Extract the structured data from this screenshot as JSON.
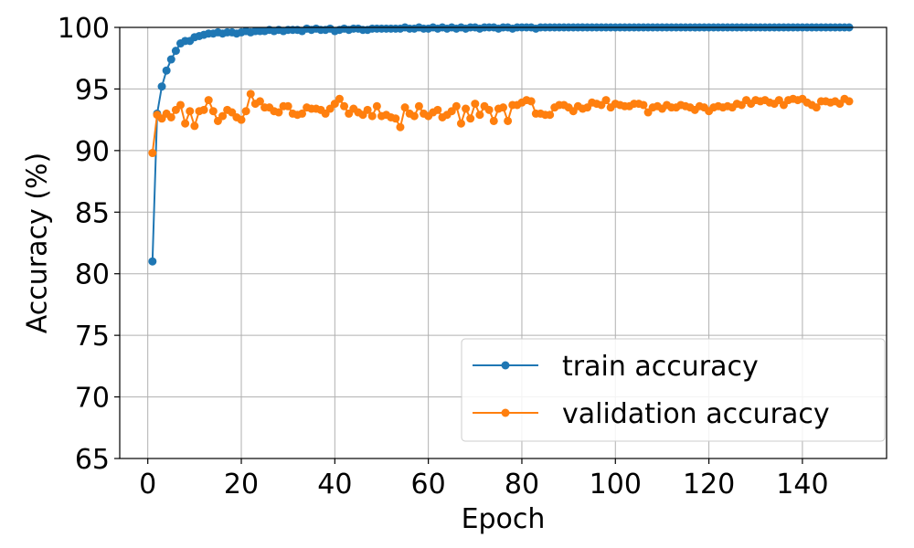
{
  "chart_data": {
    "type": "line",
    "xlabel": "Epoch",
    "ylabel": "Accuracy (%)",
    "xlim": [
      -6,
      158
    ],
    "ylim": [
      65,
      100
    ],
    "xticks": [
      0,
      20,
      40,
      60,
      80,
      100,
      120,
      140
    ],
    "yticks": [
      65,
      70,
      75,
      80,
      85,
      90,
      95,
      100
    ],
    "grid": true,
    "legend_position": "lower-right",
    "x": [
      1,
      2,
      3,
      4,
      5,
      6,
      7,
      8,
      9,
      10,
      11,
      12,
      13,
      14,
      15,
      16,
      17,
      18,
      19,
      20,
      21,
      22,
      23,
      24,
      25,
      26,
      27,
      28,
      29,
      30,
      31,
      32,
      33,
      34,
      35,
      36,
      37,
      38,
      39,
      40,
      41,
      42,
      43,
      44,
      45,
      46,
      47,
      48,
      49,
      50,
      51,
      52,
      53,
      54,
      55,
      56,
      57,
      58,
      59,
      60,
      61,
      62,
      63,
      64,
      65,
      66,
      67,
      68,
      69,
      70,
      71,
      72,
      73,
      74,
      75,
      76,
      77,
      78,
      79,
      80,
      81,
      82,
      83,
      84,
      85,
      86,
      87,
      88,
      89,
      90,
      91,
      92,
      93,
      94,
      95,
      96,
      97,
      98,
      99,
      100,
      101,
      102,
      103,
      104,
      105,
      106,
      107,
      108,
      109,
      110,
      111,
      112,
      113,
      114,
      115,
      116,
      117,
      118,
      119,
      120,
      121,
      122,
      123,
      124,
      125,
      126,
      127,
      128,
      129,
      130,
      131,
      132,
      133,
      134,
      135,
      136,
      137,
      138,
      139,
      140,
      141,
      142,
      143,
      144,
      145,
      146,
      147,
      148,
      149,
      150
    ],
    "series": [
      {
        "name": "train accuracy",
        "color": "#1f77b4",
        "values": [
          81.0,
          93.0,
          95.2,
          96.5,
          97.4,
          98.1,
          98.7,
          98.9,
          98.9,
          99.2,
          99.3,
          99.4,
          99.5,
          99.5,
          99.6,
          99.5,
          99.6,
          99.6,
          99.5,
          99.6,
          99.7,
          99.6,
          99.7,
          99.7,
          99.7,
          99.8,
          99.7,
          99.8,
          99.7,
          99.8,
          99.8,
          99.8,
          99.7,
          99.9,
          99.8,
          99.9,
          99.8,
          99.8,
          99.9,
          99.7,
          99.8,
          99.9,
          99.8,
          99.9,
          99.9,
          99.8,
          99.8,
          99.9,
          99.9,
          99.9,
          99.9,
          99.9,
          99.9,
          99.9,
          100.0,
          99.9,
          99.9,
          100.0,
          99.9,
          99.9,
          100.0,
          99.9,
          100.0,
          99.9,
          100.0,
          99.9,
          100.0,
          99.9,
          100.0,
          100.0,
          99.9,
          100.0,
          100.0,
          100.0,
          99.9,
          100.0,
          100.0,
          99.9,
          100.0,
          100.0,
          100.0,
          100.0,
          99.9,
          100.0,
          100.0,
          100.0,
          100.0,
          100.0,
          100.0,
          100.0,
          100.0,
          100.0,
          100.0,
          100.0,
          100.0,
          100.0,
          100.0,
          100.0,
          100.0,
          100.0,
          100.0,
          100.0,
          100.0,
          100.0,
          100.0,
          100.0,
          100.0,
          100.0,
          100.0,
          100.0,
          100.0,
          100.0,
          100.0,
          100.0,
          100.0,
          100.0,
          100.0,
          100.0,
          100.0,
          100.0,
          100.0,
          100.0,
          100.0,
          100.0,
          100.0,
          100.0,
          100.0,
          100.0,
          100.0,
          100.0,
          100.0,
          100.0,
          100.0,
          100.0,
          100.0,
          100.0,
          100.0,
          100.0,
          100.0,
          100.0,
          100.0,
          100.0,
          100.0,
          100.0,
          100.0,
          100.0,
          100.0,
          100.0,
          100.0,
          100.0
        ]
      },
      {
        "name": "validation accuracy",
        "color": "#ff7f0e",
        "values": [
          89.8,
          92.9,
          92.6,
          93.0,
          92.7,
          93.3,
          93.7,
          92.2,
          93.2,
          92.0,
          93.2,
          93.3,
          94.1,
          93.2,
          92.4,
          92.8,
          93.3,
          93.1,
          92.7,
          92.5,
          93.2,
          94.6,
          93.8,
          94.0,
          93.5,
          93.5,
          93.2,
          93.1,
          93.6,
          93.6,
          93.0,
          92.9,
          93.0,
          93.5,
          93.4,
          93.4,
          93.3,
          93.0,
          93.4,
          93.8,
          94.2,
          93.6,
          93.0,
          93.4,
          93.1,
          92.9,
          93.3,
          92.8,
          93.6,
          92.8,
          92.9,
          92.7,
          92.6,
          91.9,
          93.5,
          93.0,
          92.8,
          93.6,
          93.0,
          92.8,
          93.1,
          93.3,
          92.7,
          92.9,
          93.2,
          93.6,
          92.2,
          93.4,
          92.6,
          93.8,
          92.9,
          93.6,
          93.3,
          92.4,
          93.4,
          93.5,
          92.4,
          93.7,
          93.7,
          93.9,
          94.1,
          94.0,
          93.0,
          93.0,
          92.9,
          92.9,
          93.5,
          93.7,
          93.7,
          93.5,
          93.2,
          93.6,
          93.4,
          93.5,
          93.9,
          93.8,
          93.7,
          94.1,
          93.5,
          93.8,
          93.7,
          93.6,
          93.6,
          93.8,
          93.8,
          93.7,
          93.1,
          93.5,
          93.6,
          93.4,
          93.7,
          93.5,
          93.5,
          93.7,
          93.6,
          93.5,
          93.3,
          93.6,
          93.5,
          93.2,
          93.5,
          93.6,
          93.5,
          93.6,
          93.5,
          93.8,
          93.7,
          94.1,
          93.8,
          94.1,
          94.0,
          94.1,
          93.9,
          93.8,
          94.1,
          93.7,
          94.1,
          94.2,
          94.1,
          94.2,
          93.9,
          93.7,
          93.5,
          94.0,
          94.0,
          93.9,
          94.0,
          93.8,
          94.2,
          94.0
        ]
      }
    ]
  }
}
